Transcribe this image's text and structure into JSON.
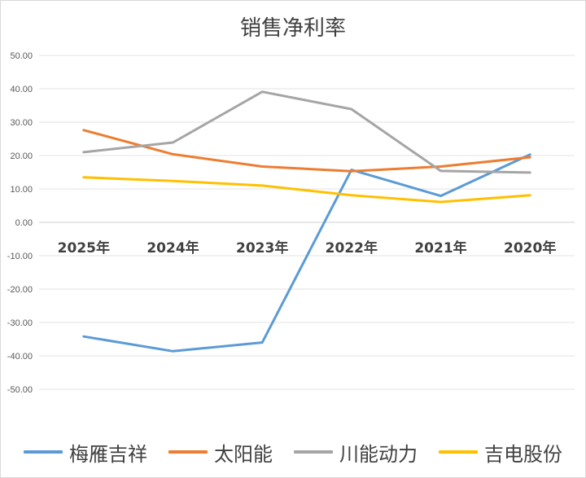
{
  "chart_data": {
    "type": "line",
    "title": "销售净利率",
    "categories": [
      "2025年",
      "2024年",
      "2023年",
      "2022年",
      "2021年",
      "2020年"
    ],
    "ylim": [
      -50,
      50
    ],
    "yticks": [
      "50.00",
      "40.00",
      "30.00",
      "20.00",
      "10.00",
      "0.00",
      "-10.00",
      "-20.00",
      "-30.00",
      "-40.00",
      "-50.00"
    ],
    "grid": true,
    "legend_position": "bottom",
    "series": [
      {
        "name": "梅雁吉祥",
        "color": "#5b9bd5",
        "values": [
          -34.2,
          -38.6,
          -36.0,
          15.7,
          7.9,
          20.3
        ]
      },
      {
        "name": "太阳能",
        "color": "#ed7d31",
        "values": [
          27.6,
          20.4,
          16.7,
          15.3,
          16.7,
          19.5
        ]
      },
      {
        "name": "川能动力",
        "color": "#a5a5a5",
        "values": [
          21.0,
          23.9,
          39.1,
          33.9,
          15.4,
          14.9
        ]
      },
      {
        "name": "吉电股份",
        "color": "#ffc000",
        "values": [
          13.5,
          12.4,
          11.0,
          8.1,
          6.1,
          8.1
        ]
      }
    ]
  }
}
